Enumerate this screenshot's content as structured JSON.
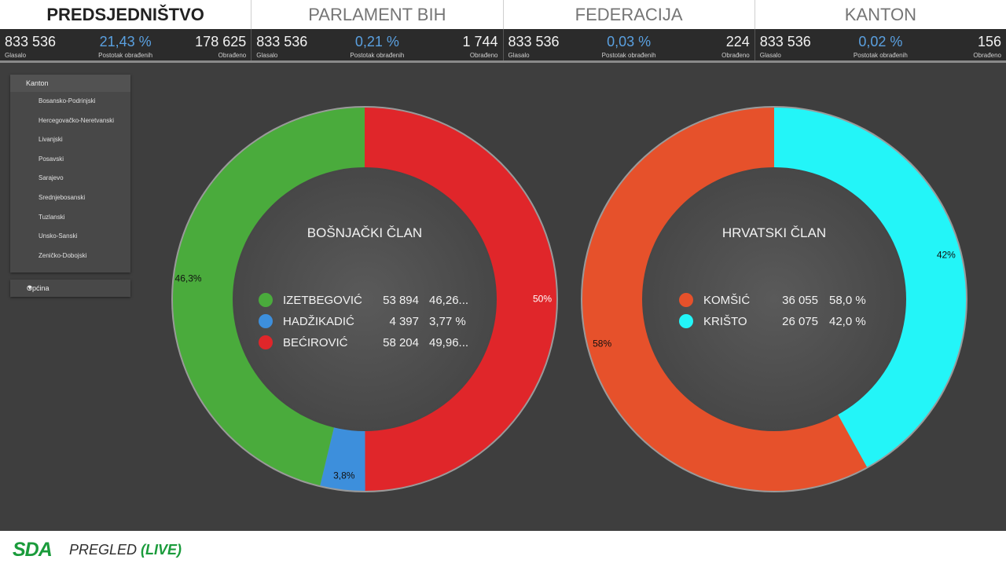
{
  "tabs": [
    {
      "label": "PREDSJEDNIŠTVO",
      "active": true
    },
    {
      "label": "PARLAMENT BIH",
      "active": false
    },
    {
      "label": "FEDERACIJA",
      "active": false
    },
    {
      "label": "KANTON",
      "active": false
    }
  ],
  "stats": [
    {
      "glasalo": "833 536",
      "pct": "21,43 %",
      "obradjeno": "178 625"
    },
    {
      "glasalo": "833 536",
      "pct": "0,21 %",
      "obradjeno": "1 744"
    },
    {
      "glasalo": "833 536",
      "pct": "0,03 %",
      "obradjeno": "224"
    },
    {
      "glasalo": "833 536",
      "pct": "0,02 %",
      "obradjeno": "156"
    }
  ],
  "stat_labels": {
    "glasalo": "Glasalo",
    "pct": "Postotak obrađenih",
    "obradjeno": "Obrađeno"
  },
  "filter": {
    "header": "Kanton",
    "items": [
      "Bosansko-Podrinjski",
      "Hercegovačko-Neretvanski",
      "Livanjski",
      "Posavski",
      "Sarajevo",
      "Srednjebosanski",
      "Tuzlanski",
      "Unsko-Sanski",
      "Zeničko-Dobojski"
    ]
  },
  "opcina": {
    "label": "Općina"
  },
  "chart_data": [
    {
      "type": "pie",
      "title": "BOŠNJAČKI ČLAN",
      "categories": [
        "IZETBEGOVIĆ",
        "HADŽIKADIĆ",
        "BEĆIROVIĆ"
      ],
      "values": [
        53894,
        4397,
        58204
      ],
      "value_labels": [
        "53 894",
        "4 397",
        "58 204"
      ],
      "pct_labels": [
        "46,26...",
        "3,77 %",
        "49,96..."
      ],
      "slice_labels": [
        "46,3%",
        "3,8%",
        "50%"
      ],
      "colors": [
        "#4aab3c",
        "#3d8fdc",
        "#e0262a"
      ]
    },
    {
      "type": "pie",
      "title": "HRVATSKI ČLAN",
      "categories": [
        "KOMŠIĆ",
        "KRIŠTO"
      ],
      "values": [
        36055,
        26075
      ],
      "value_labels": [
        "36 055",
        "26 075"
      ],
      "pct_labels": [
        "58,0 %",
        "42,0 %"
      ],
      "slice_labels": [
        "58%",
        "42%"
      ],
      "colors": [
        "#e6512b",
        "#23f5f8"
      ]
    }
  ],
  "footer": {
    "logo": "SDA",
    "title": "PREGLED",
    "live": "(LIVE)"
  }
}
